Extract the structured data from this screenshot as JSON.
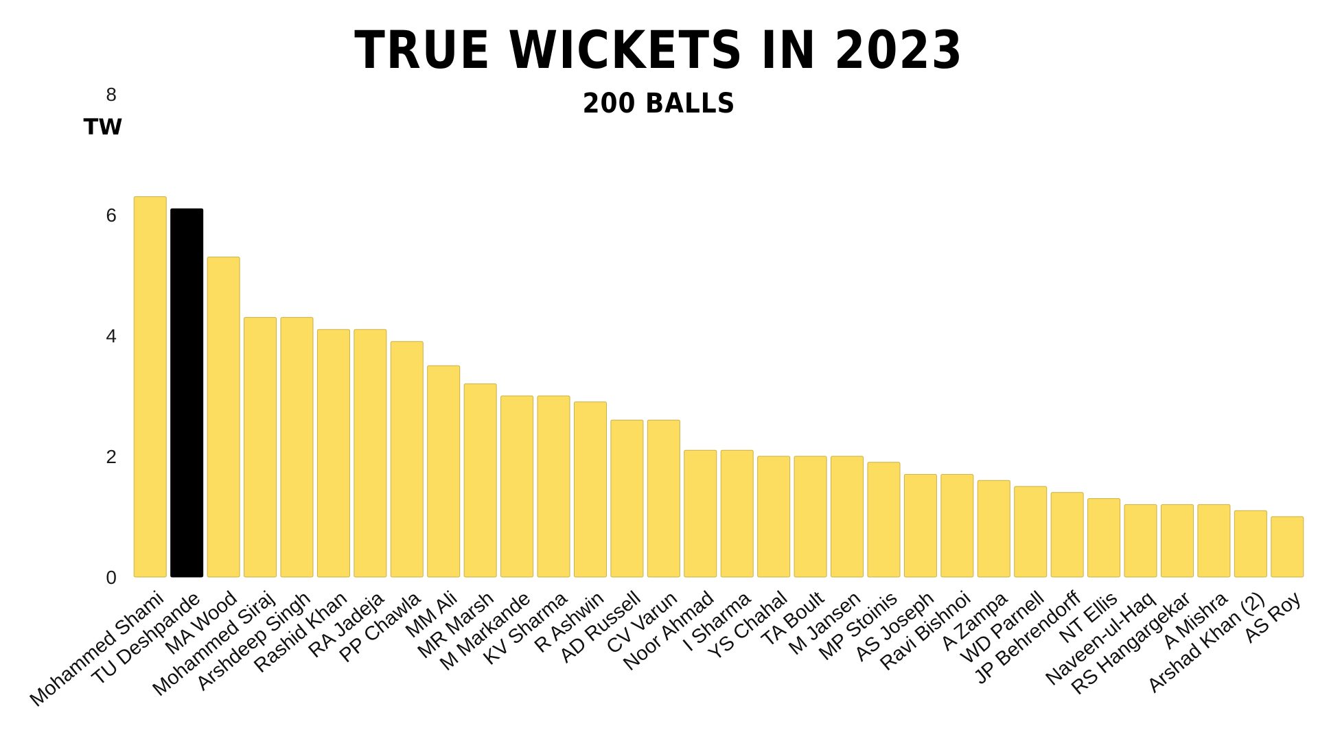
{
  "chart_data": {
    "type": "bar",
    "title": "TRUE WICKETS IN 2023",
    "subtitle": "200 BALLS",
    "ylabel": "TW",
    "xlabel": "",
    "ylim": [
      0,
      8
    ],
    "yticks": [
      0,
      2,
      4,
      6,
      8
    ],
    "grid": false,
    "colors": {
      "default_bar": "#FCDD5F",
      "highlight_bar": "#000000",
      "bar_stroke": "#c9b04a"
    },
    "highlight": "TU Deshpande",
    "categories": [
      "Mohammed Shami",
      "TU Deshpande",
      "MA Wood",
      "Mohammed Siraj",
      "Arshdeep Singh",
      "Rashid Khan",
      "RA Jadeja",
      "PP Chawla",
      "MM Ali",
      "MR Marsh",
      "M Markande",
      "KV Sharma",
      "R Ashwin",
      "AD Russell",
      "CV Varun",
      "Noor Ahmad",
      "I Sharma",
      "YS Chahal",
      "TA Boult",
      "M Jansen",
      "MP Stoinis",
      "AS Joseph",
      "Ravi Bishnoi",
      "A Zampa",
      "WD Parnell",
      "JP Behrendorff",
      "NT Ellis",
      "Naveen-ul-Haq",
      "RS Hangargekar",
      "A Mishra",
      "Arshad Khan (2)",
      "AS Roy"
    ],
    "values": [
      6.3,
      6.1,
      5.3,
      4.3,
      4.3,
      4.1,
      4.1,
      3.9,
      3.5,
      3.2,
      3.0,
      3.0,
      2.9,
      2.6,
      2.6,
      2.1,
      2.1,
      2.0,
      2.0,
      2.0,
      1.9,
      1.7,
      1.7,
      1.6,
      1.5,
      1.4,
      1.3,
      1.2,
      1.2,
      1.2,
      1.1,
      1.0
    ]
  }
}
